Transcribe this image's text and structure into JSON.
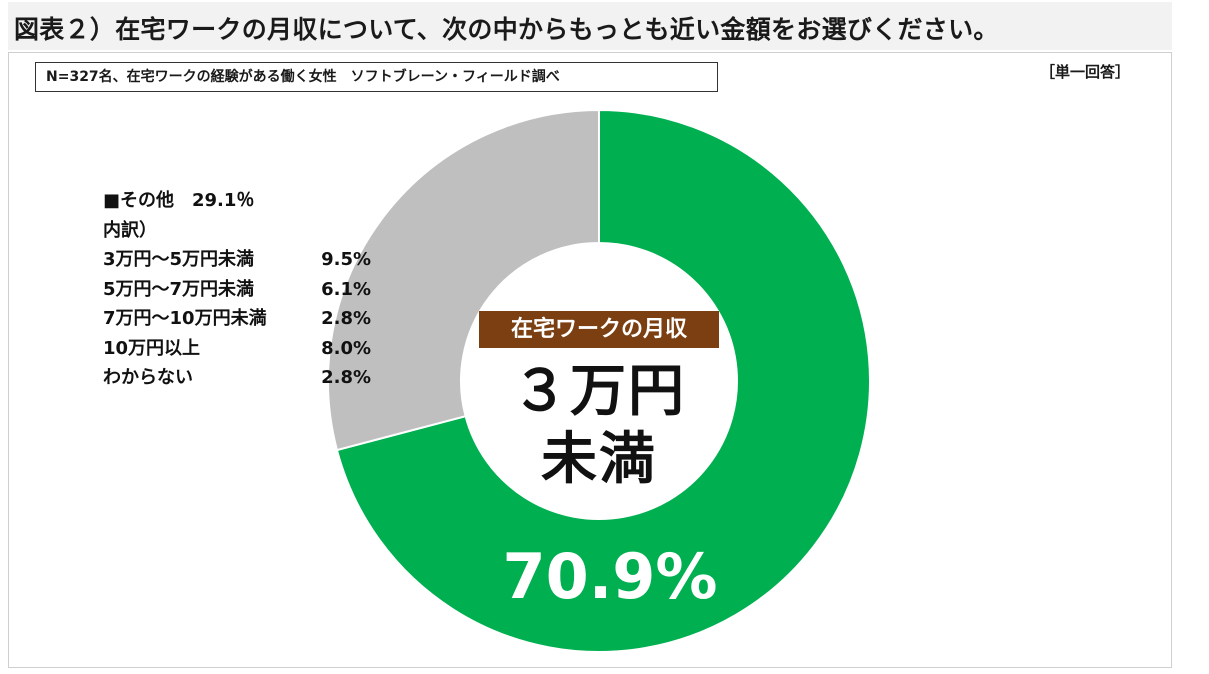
{
  "header": {
    "title": "図表２）在宅ワークの月収について、次の中からもっとも近い金額をお選びください。",
    "note": "N=327名、在宅ワークの経験がある働く女性　ソフトブレーン・フィールド調べ",
    "answer_type": "［単一回答］"
  },
  "colors": {
    "main": "#00b050",
    "other": "#bfbfbf",
    "tag_bg": "#7b3f12"
  },
  "chart_data": {
    "type": "pie",
    "donut": true,
    "start": "top",
    "direction": "clockwise",
    "slices": [
      {
        "label": "3万円未満",
        "value": 70.9
      },
      {
        "label": "その他",
        "value": 29.1
      }
    ],
    "center_tag": "在宅ワークの月収",
    "center_line1": "３万円",
    "center_line2": "未満",
    "main_label": "70.9%",
    "other_heading": "■その他　29.1％",
    "breakdown_heading": "内訳）",
    "breakdown": [
      {
        "label": "3万円～5万円未満",
        "value": "9.5%"
      },
      {
        "label": "5万円～7万円未満",
        "value": "6.1%"
      },
      {
        "label": "7万円～10万円未満",
        "value": "2.8%"
      },
      {
        "label": "10万円以上",
        "value": "8.0%"
      },
      {
        "label": "わからない",
        "value": "2.8%"
      }
    ]
  }
}
